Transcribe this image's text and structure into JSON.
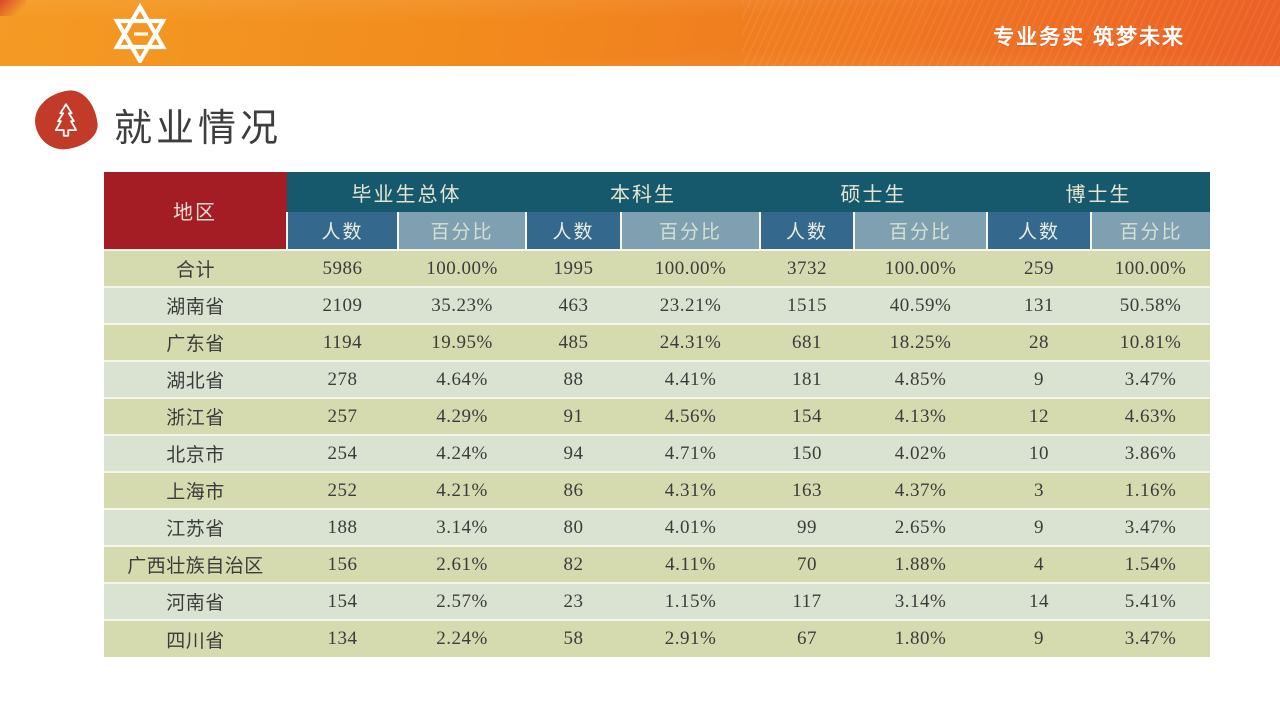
{
  "banner": {
    "slogan": "专业务实 筑梦未来",
    "logo": "star-emblem-icon"
  },
  "title": {
    "text": "就业情况",
    "icon": "pine-tree-icon"
  },
  "table": {
    "region_header": "地区",
    "groups": [
      {
        "label": "毕业生总体"
      },
      {
        "label": "本科生"
      },
      {
        "label": "硕士生"
      },
      {
        "label": "博士生"
      }
    ],
    "sub_headers": {
      "count": "人数",
      "percent": "百分比"
    },
    "rows": [
      {
        "region": "合计",
        "cells": [
          "5986",
          "100.00%",
          "1995",
          "100.00%",
          "3732",
          "100.00%",
          "259",
          "100.00%"
        ]
      },
      {
        "region": "湖南省",
        "cells": [
          "2109",
          "35.23%",
          "463",
          "23.21%",
          "1515",
          "40.59%",
          "131",
          "50.58%"
        ]
      },
      {
        "region": "广东省",
        "cells": [
          "1194",
          "19.95%",
          "485",
          "24.31%",
          "681",
          "18.25%",
          "28",
          "10.81%"
        ]
      },
      {
        "region": "湖北省",
        "cells": [
          "278",
          "4.64%",
          "88",
          "4.41%",
          "181",
          "4.85%",
          "9",
          "3.47%"
        ]
      },
      {
        "region": "浙江省",
        "cells": [
          "257",
          "4.29%",
          "91",
          "4.56%",
          "154",
          "4.13%",
          "12",
          "4.63%"
        ]
      },
      {
        "region": "北京市",
        "cells": [
          "254",
          "4.24%",
          "94",
          "4.71%",
          "150",
          "4.02%",
          "10",
          "3.86%"
        ]
      },
      {
        "region": "上海市",
        "cells": [
          "252",
          "4.21%",
          "86",
          "4.31%",
          "163",
          "4.37%",
          "3",
          "1.16%"
        ]
      },
      {
        "region": "江苏省",
        "cells": [
          "188",
          "3.14%",
          "80",
          "4.01%",
          "99",
          "2.65%",
          "9",
          "3.47%"
        ]
      },
      {
        "region": "广西壮族自治区",
        "cells": [
          "156",
          "2.61%",
          "82",
          "4.11%",
          "70",
          "1.88%",
          "4",
          "1.54%"
        ]
      },
      {
        "region": "河南省",
        "cells": [
          "154",
          "2.57%",
          "23",
          "1.15%",
          "117",
          "3.14%",
          "14",
          "5.41%"
        ]
      },
      {
        "region": "四川省",
        "cells": [
          "134",
          "2.24%",
          "58",
          "2.91%",
          "67",
          "1.80%",
          "9",
          "3.47%"
        ]
      }
    ]
  },
  "colors": {
    "banner_orange_left": "#F49B24",
    "banner_orange_right": "#EC6026",
    "badge_red": "#C23B28",
    "region_header_red": "#A41C24",
    "group_header_teal": "#16596D",
    "count_header_blue": "#35688D",
    "percent_header_slate": "#7EA0B0",
    "row_odd_olive": "#D5DAAF",
    "row_even_sage": "#DAE3D1",
    "body_text": "#3C3C3C"
  }
}
